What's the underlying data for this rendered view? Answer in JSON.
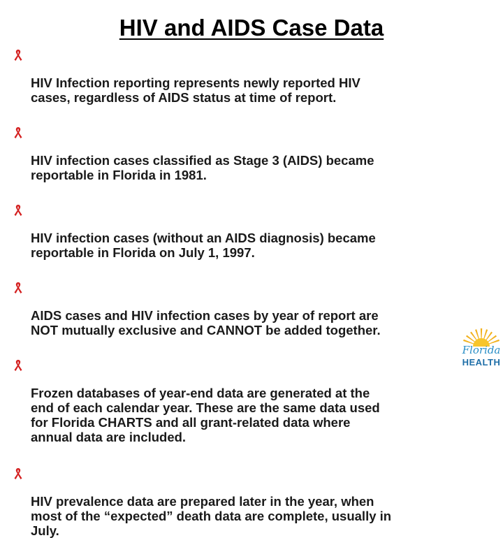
{
  "slide": {
    "title": "HIV and AIDS Case Data",
    "bullet_icon": "red-ribbon-icon",
    "bullet_color": "#d42020",
    "bullets": [
      "HIV Infection reporting represents newly reported HIV\ncases, regardless of AIDS status at time of report.",
      "HIV infection cases classified as Stage 3 (AIDS) became\nreportable in Florida in 1981.",
      "HIV infection cases (without an AIDS diagnosis) became\nreportable in Florida on July 1, 1997.",
      "AIDS cases and HIV infection cases by year of report are\nNOT mutually exclusive and CANNOT be added together.",
      "Frozen databases of year-end data are generated at the\nend of each calendar year.  These are the same data used\nfor Florida CHARTS and all grant-related data where\nannual data are included.",
      "HIV prevalence data are prepared  later in the year, when\nmost of the “expected” death data are complete, usually in\nJuly."
    ]
  },
  "logo": {
    "line1": "Florida",
    "line2": "HEALTH",
    "icon": "sun-logo-icon",
    "sun_color": "#f2b11d",
    "text_color": "#1f6fa8"
  }
}
